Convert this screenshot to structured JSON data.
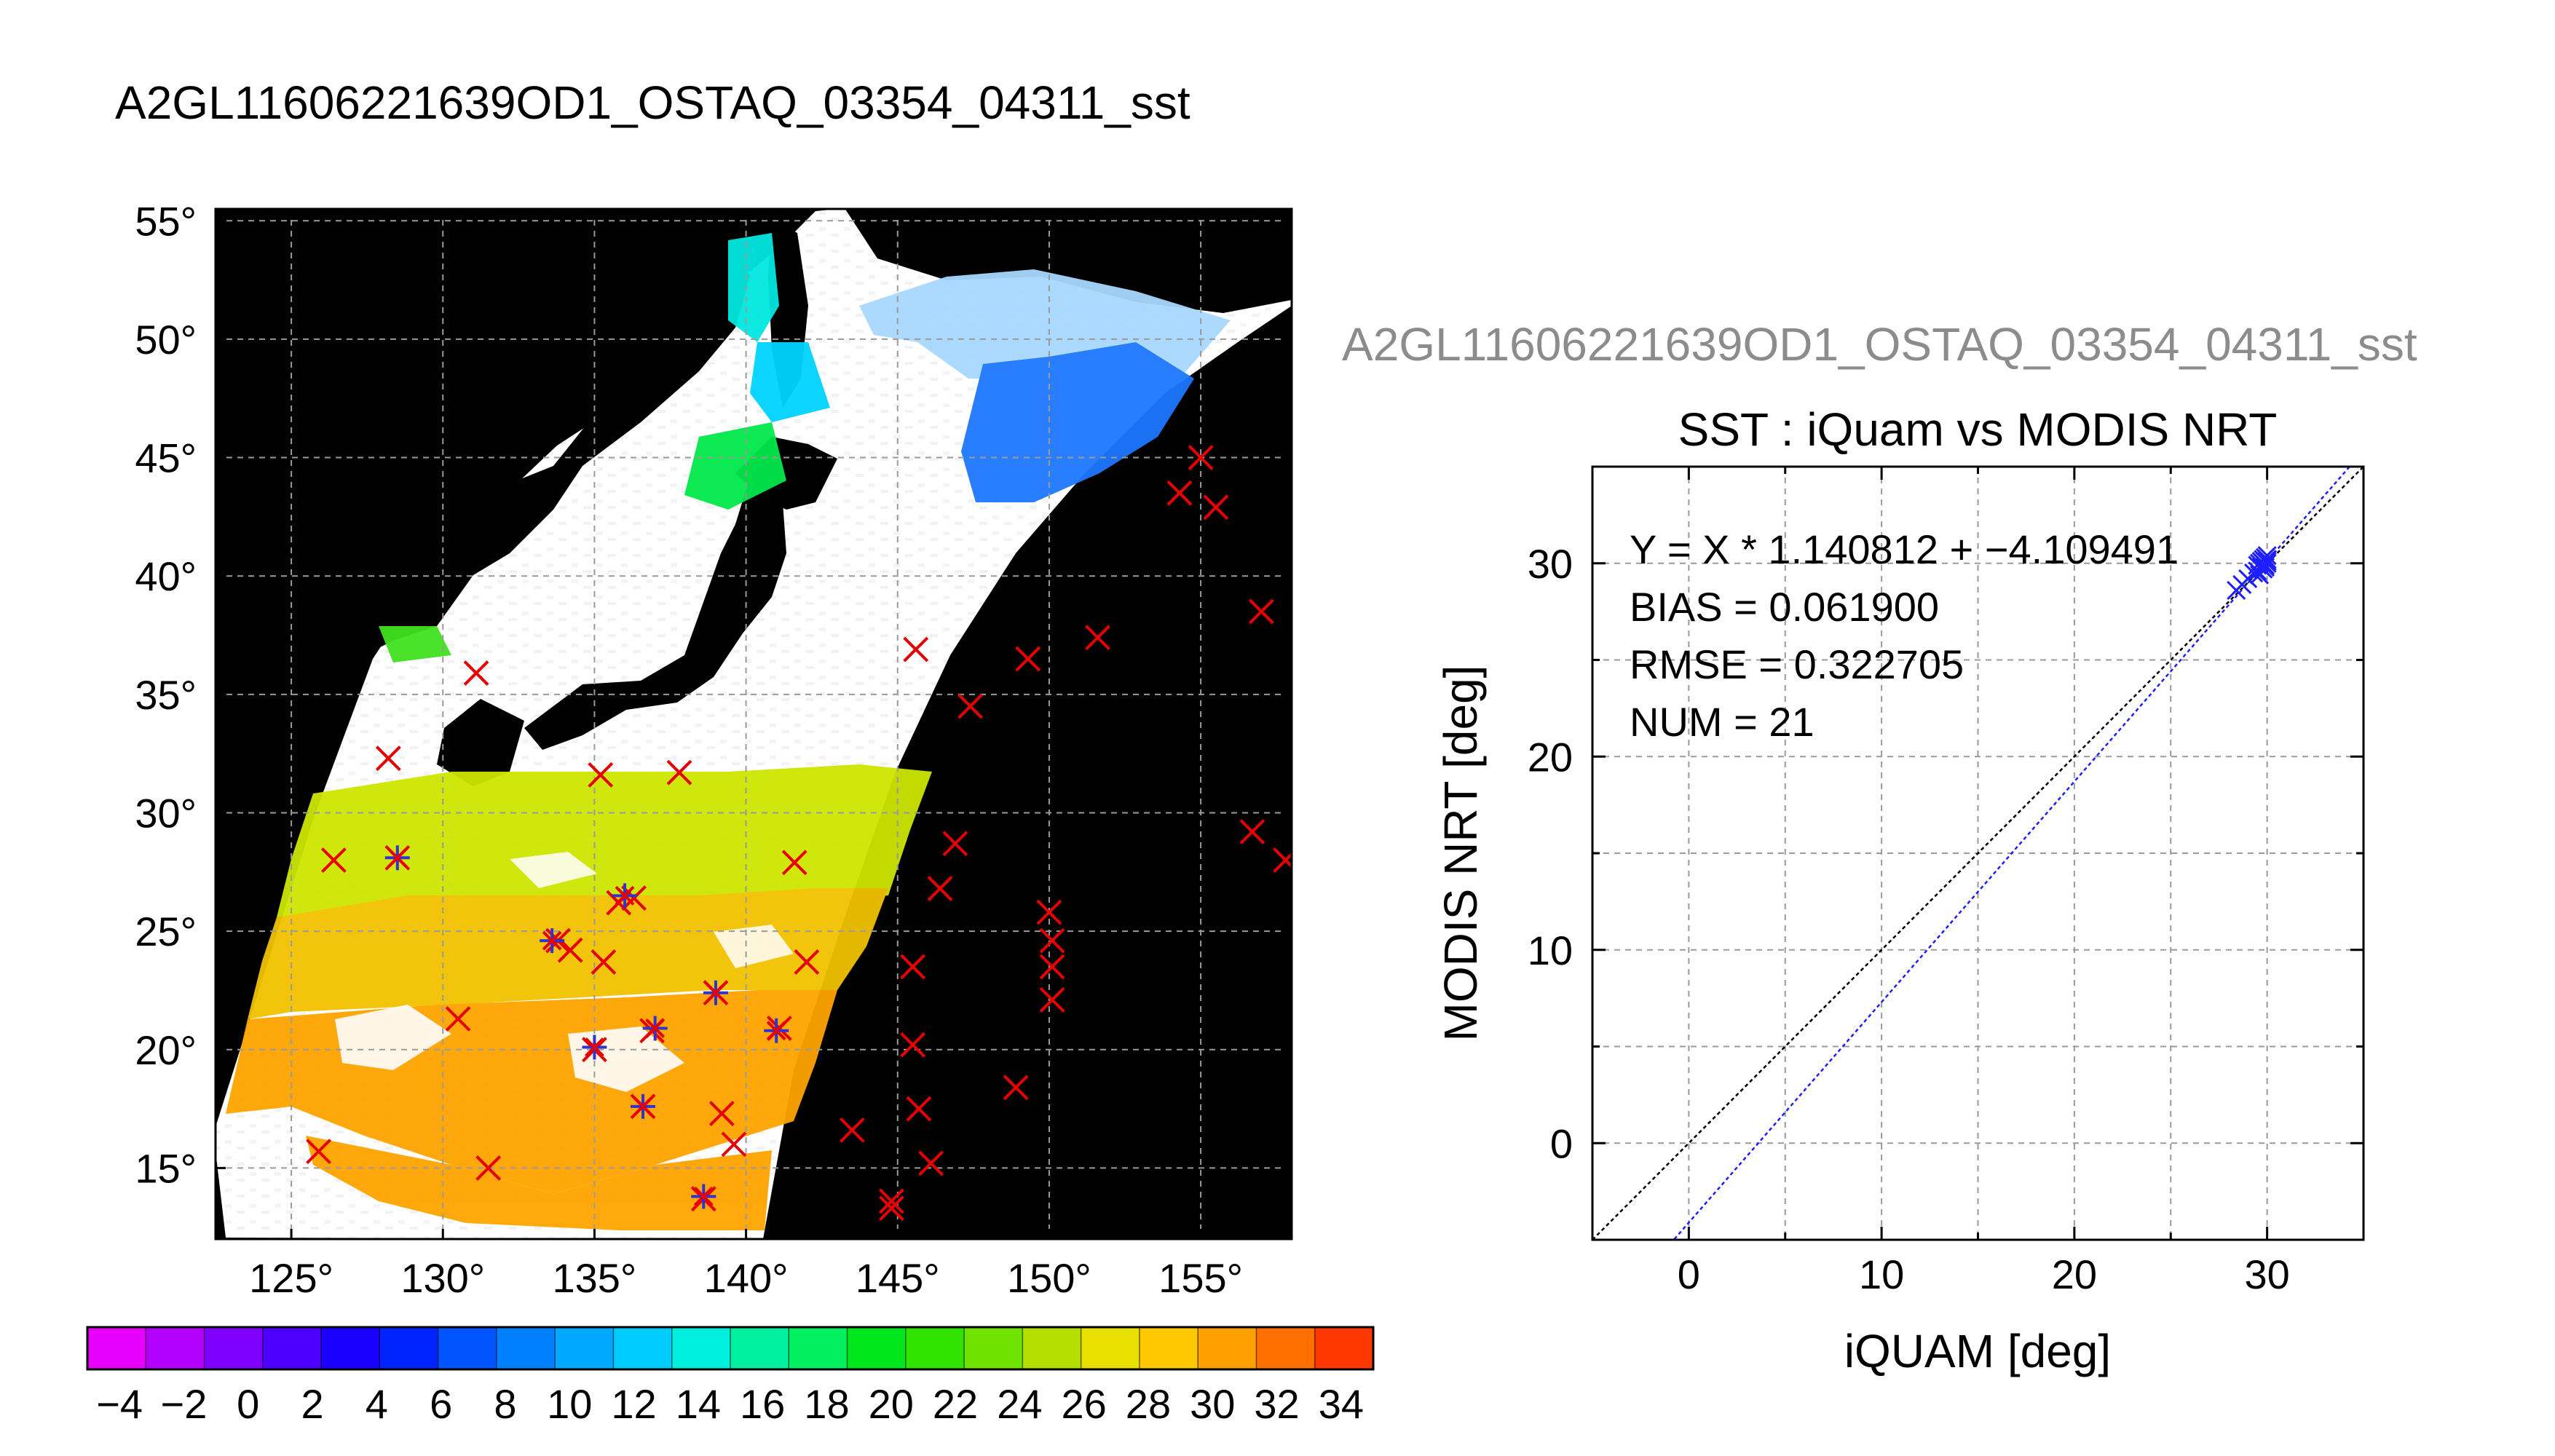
{
  "figure": {
    "main_title": "A2GL11606221639OD1_OSTAQ_03354_04311_sst",
    "scatter_supertitle": "A2GL11606221639OD1_OSTAQ_03354_04311_sst"
  },
  "colors": {
    "land": "#000000",
    "cloud": "#ffffff",
    "match_marker": "#e60000",
    "used_marker": "#3333cc",
    "regression_line": "#1e1eff",
    "identity_line": "#000000",
    "grid": "#9a9a9a",
    "supertitle_gray": "#8c8c8c"
  },
  "map": {
    "lon_ticks": [
      "125°",
      "130°",
      "135°",
      "140°",
      "145°",
      "150°",
      "155°"
    ],
    "lat_ticks": [
      "55°",
      "50°",
      "45°",
      "40°",
      "35°",
      "30°",
      "25°",
      "20°",
      "15°"
    ],
    "lon_range": [
      122.5,
      158
    ],
    "lat_range": [
      12,
      55.5
    ]
  },
  "colorbar": {
    "ticks": [
      "−4",
      "−2",
      "0",
      "2",
      "4",
      "6",
      "8",
      "10",
      "12",
      "14",
      "16",
      "18",
      "20",
      "22",
      "24",
      "26",
      "28",
      "30",
      "32",
      "34"
    ],
    "range": [
      -5,
      35
    ],
    "step": 2,
    "colors": [
      "#e800ff",
      "#b300ff",
      "#8000ff",
      "#4d00ff",
      "#1a00ff",
      "#0024ff",
      "#0055ff",
      "#0080ff",
      "#00a8ff",
      "#00ccff",
      "#00eedd",
      "#00f0a0",
      "#00f060",
      "#00e81c",
      "#30e400",
      "#70e200",
      "#b4e000",
      "#e8e000",
      "#ffc800",
      "#ffa000",
      "#ff7000",
      "#ff3800"
    ]
  },
  "chart_data": [
    {
      "type": "map",
      "title": "A2GL11606221639OD1_OSTAQ_03354_04311_sst",
      "xlim": [
        122.5,
        158
      ],
      "ylim": [
        12,
        55.5
      ],
      "match_points": [
        [
          125.9,
          15.7
        ],
        [
          126.4,
          28.0
        ],
        [
          128.2,
          32.3
        ],
        [
          128.5,
          28.1
        ],
        [
          130.5,
          21.3
        ],
        [
          131.1,
          35.9
        ],
        [
          131.5,
          15.0
        ],
        [
          133.8,
          24.6
        ],
        [
          134.2,
          24.2
        ],
        [
          135.2,
          31.6
        ],
        [
          135.3,
          23.7
        ],
        [
          135.0,
          20.0
        ],
        [
          135.8,
          26.2
        ],
        [
          136.3,
          26.4
        ],
        [
          136.6,
          17.6
        ],
        [
          136.9,
          20.8
        ],
        [
          137.8,
          31.7
        ],
        [
          139.0,
          22.4
        ],
        [
          139.2,
          17.3
        ],
        [
          139.6,
          16.0
        ],
        [
          138.6,
          13.7
        ],
        [
          141.1,
          20.9
        ],
        [
          141.6,
          27.9
        ],
        [
          142.0,
          23.7
        ],
        [
          143.5,
          16.6
        ],
        [
          144.8,
          13.3
        ],
        [
          144.8,
          13.6
        ],
        [
          145.5,
          20.2
        ],
        [
          145.5,
          23.5
        ],
        [
          145.6,
          36.9
        ],
        [
          145.7,
          17.5
        ],
        [
          146.4,
          26.8
        ],
        [
          146.1,
          15.2
        ],
        [
          146.9,
          28.7
        ],
        [
          147.4,
          34.5
        ],
        [
          148.9,
          18.4
        ],
        [
          149.3,
          36.5
        ],
        [
          150.0,
          25.8
        ],
        [
          150.1,
          24.6
        ],
        [
          150.1,
          23.5
        ],
        [
          150.1,
          22.1
        ],
        [
          151.6,
          37.4
        ],
        [
          154.3,
          43.5
        ],
        [
          155.0,
          45.0
        ],
        [
          155.5,
          42.9
        ],
        [
          156.7,
          29.2
        ],
        [
          157.0,
          38.5
        ],
        [
          157.8,
          28.0
        ]
      ],
      "used_points": [
        [
          128.5,
          28.1
        ],
        [
          133.6,
          24.6
        ],
        [
          135.0,
          20.1
        ],
        [
          136.0,
          26.5
        ],
        [
          136.6,
          17.6
        ],
        [
          137.0,
          20.9
        ],
        [
          139.0,
          22.4
        ],
        [
          138.6,
          13.8
        ],
        [
          141.0,
          20.8
        ]
      ]
    },
    {
      "type": "scatter",
      "title": "SST : iQuam vs MODIS NRT",
      "xlabel": "iQUAM [deg]",
      "ylabel": "MODIS NRT [deg]",
      "xlim": [
        -5,
        35
      ],
      "ylim": [
        -5,
        35
      ],
      "xticks": [
        "0",
        "10",
        "20",
        "30"
      ],
      "yticks": [
        "0",
        "10",
        "20",
        "30"
      ],
      "x": [
        28.4,
        28.7,
        29.0,
        29.3,
        29.5,
        29.6,
        29.7,
        29.8,
        29.8,
        29.9,
        29.9,
        30.0,
        30.0,
        29.6,
        29.7,
        29.9,
        30.0,
        29.8,
        29.5,
        29.9,
        30.0
      ],
      "y": [
        28.6,
        28.9,
        29.2,
        29.5,
        29.9,
        30.0,
        29.8,
        30.2,
        29.7,
        30.1,
        30.3,
        30.0,
        30.2,
        29.4,
        30.1,
        29.9,
        30.4,
        30.0,
        29.6,
        29.8,
        30.1
      ],
      "fit": {
        "slope": 1.140812,
        "intercept": -4.109491
      },
      "stats": [
        "Y = X * 1.140812 + −4.109491",
        "BIAS = 0.061900",
        "RMSE = 0.322705",
        "NUM = 21"
      ],
      "grid": true
    }
  ]
}
